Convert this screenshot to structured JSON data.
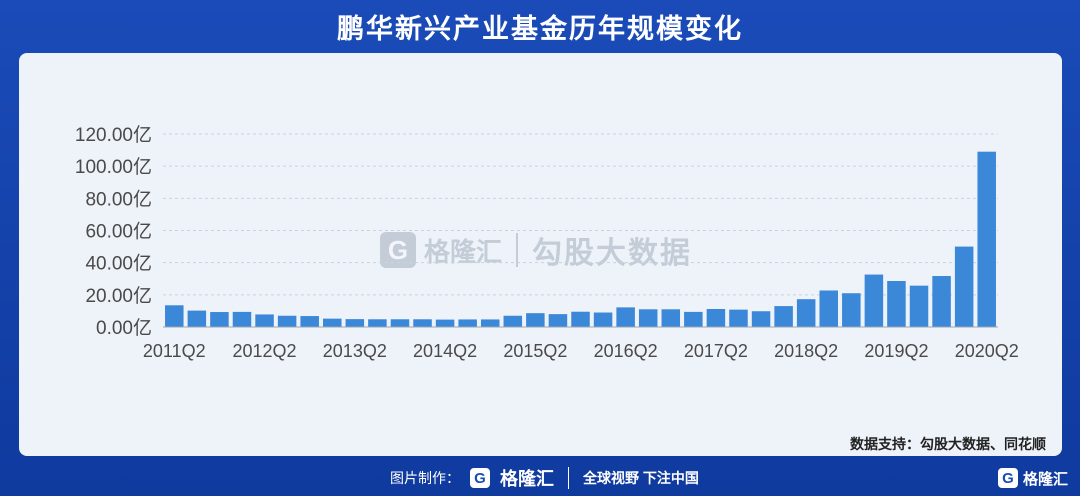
{
  "header": {
    "title": "鹏华新兴产业基金历年规模变化"
  },
  "watermark": {
    "logo_letter": "G",
    "brand": "格隆汇",
    "text": "勾股大数据"
  },
  "source": "数据支持：勾股大数据、同花顺",
  "footer": {
    "made_by": "图片制作：",
    "logo_letter": "G",
    "brand": "格隆汇",
    "slogan": "全球视野 下注中国",
    "right_brand": "格隆汇"
  },
  "colors": {
    "bar": "#3b87d8",
    "grid": "#c9d2de",
    "axis": "#9aa6b5"
  },
  "chart_data": {
    "type": "bar",
    "title": "鹏华新兴产业基金历年规模变化",
    "ylim": [
      0,
      120
    ],
    "yticks": [
      "120.00亿",
      "100.00亿",
      "80.00亿",
      "60.00亿",
      "40.00亿",
      "20.00亿",
      "0.00亿"
    ],
    "ytick_values": [
      120,
      100,
      80,
      60,
      40,
      20,
      0
    ],
    "xtick_labels": [
      "2011Q2",
      "2012Q2",
      "2013Q2",
      "2014Q2",
      "2015Q2",
      "2016Q2",
      "2017Q2",
      "2018Q2",
      "2019Q2",
      "2020Q2"
    ],
    "xtick_every": 4,
    "categories": [
      "2011Q2",
      "2011Q3",
      "2011Q4",
      "2012Q1",
      "2012Q2",
      "2012Q3",
      "2012Q4",
      "2013Q1",
      "2013Q2",
      "2013Q3",
      "2013Q4",
      "2014Q1",
      "2014Q2",
      "2014Q3",
      "2014Q4",
      "2015Q1",
      "2015Q2",
      "2015Q3",
      "2015Q4",
      "2016Q1",
      "2016Q2",
      "2016Q3",
      "2016Q4",
      "2017Q1",
      "2017Q2",
      "2017Q3",
      "2017Q4",
      "2018Q1",
      "2018Q2",
      "2018Q3",
      "2018Q4",
      "2019Q1",
      "2019Q2",
      "2019Q3",
      "2019Q4",
      "2020Q1",
      "2020Q2"
    ],
    "values": [
      13.5,
      10.2,
      9.3,
      9.4,
      7.8,
      7.0,
      6.8,
      5.2,
      4.9,
      4.8,
      4.8,
      4.8,
      4.6,
      4.7,
      4.7,
      7.0,
      8.6,
      8.0,
      9.5,
      9.0,
      12.2,
      11.0,
      11.0,
      9.4,
      11.2,
      10.8,
      9.8,
      13.0,
      17.3,
      22.7,
      21.0,
      32.6,
      28.6,
      25.7,
      31.7,
      50.0,
      109.0
    ],
    "grid": true
  }
}
